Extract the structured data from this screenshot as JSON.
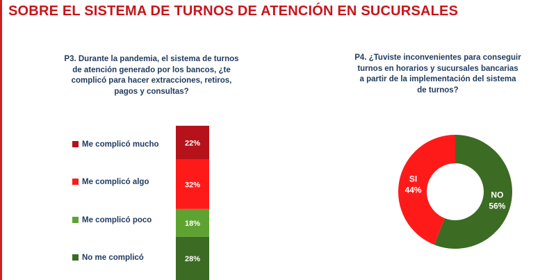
{
  "header": {
    "title": "SOBRE EL SISTEMA DE TURNOS DE ATENCIÓN EN SUCURSALES"
  },
  "colors": {
    "title_red": "#c8151b",
    "dark_red": "#b5121b",
    "red": "#ff1a1a",
    "light_green": "#5ea332",
    "dark_green": "#3c6b23",
    "question_navy": "#1f3a5f"
  },
  "chart_data": [
    {
      "type": "bar",
      "stacked": true,
      "orientation": "vertical",
      "title": "P3. Durante la pandemia, el sistema de turnos de atención generado por los bancos, ¿te complicó para hacer extracciones, retiros, pagos y consultas?",
      "categories": [
        "Me complicó mucho",
        "Me complicó algo",
        "Me complicó poco",
        "No me complicó"
      ],
      "values": [
        22,
        32,
        18,
        28
      ],
      "labels": [
        "22%",
        "32%",
        "18%",
        "28%"
      ],
      "colors": [
        "#b5121b",
        "#ff1a1a",
        "#5ea332",
        "#3c6b23"
      ],
      "legend": "left"
    },
    {
      "type": "pie",
      "donut": true,
      "title": "P4. ¿Tuviste inconvenientes para conseguir turnos en horarios y sucursales bancarias a partir de la implementación del sistema de turnos?",
      "categories": [
        "SI",
        "NO"
      ],
      "values": [
        44,
        56
      ],
      "labels": [
        "44%",
        "56%"
      ],
      "colors": [
        "#ff1a1a",
        "#3c6b23"
      ]
    }
  ]
}
